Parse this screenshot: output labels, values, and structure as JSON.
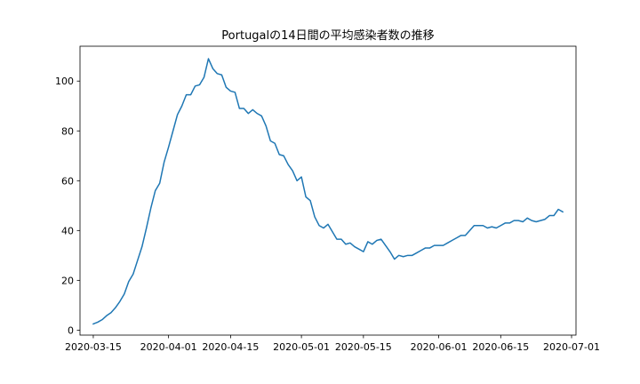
{
  "chart_data": {
    "type": "line",
    "title": "Portugalの14日間の平均感染者数の推移",
    "xlabel": "",
    "ylabel": "",
    "grid": false,
    "x_start": "2020-03-15",
    "x_step_days": 1,
    "xlim": [
      "2020-03-12",
      "2020-07-02"
    ],
    "ylim": [
      -2,
      114
    ],
    "yticks": [
      0,
      20,
      40,
      60,
      80,
      100
    ],
    "ytick_labels": [
      "0",
      "20",
      "40",
      "60",
      "80",
      "100"
    ],
    "xticks": [
      "2020-03-15",
      "2020-04-01",
      "2020-04-15",
      "2020-05-01",
      "2020-05-15",
      "2020-06-01",
      "2020-06-15",
      "2020-07-01"
    ],
    "xtick_labels": [
      "2020-03-15",
      "2020-04-01",
      "2020-04-15",
      "2020-05-01",
      "2020-05-15",
      "2020-06-01",
      "2020-06-15",
      "2020-07-01"
    ],
    "series": [
      {
        "name": "",
        "color": "#1f77b4",
        "values": [
          2.5,
          3.2,
          4.2,
          5.8,
          7.0,
          9.0,
          11.5,
          14.5,
          19.5,
          22.5,
          28.0,
          33.5,
          41.0,
          49.0,
          56.0,
          59.0,
          67.5,
          73.5,
          80.0,
          86.5,
          90.0,
          94.5,
          94.5,
          98.0,
          98.5,
          101.5,
          109.0,
          105.0,
          103.0,
          102.5,
          97.5,
          96.0,
          95.5,
          89.0,
          89.0,
          87.0,
          88.5,
          87.0,
          86.0,
          82.0,
          76.0,
          75.0,
          70.5,
          70.0,
          66.5,
          64.0,
          60.0,
          61.5,
          53.5,
          52.0,
          45.5,
          42.0,
          41.0,
          42.5,
          39.5,
          36.5,
          36.5,
          34.5,
          35.0,
          33.5,
          32.5,
          31.5,
          35.5,
          34.5,
          36.0,
          36.5,
          34.0,
          31.5,
          28.5,
          30.0,
          29.5,
          30.0,
          30.0,
          31.0,
          32.0,
          33.0,
          33.0,
          34.0,
          34.0,
          34.0,
          35.0,
          36.0,
          37.0,
          38.0,
          38.0,
          40.0,
          42.0,
          42.0,
          42.0,
          41.0,
          41.5,
          41.0,
          42.0,
          43.0,
          43.0,
          44.0,
          44.0,
          43.5,
          45.0,
          44.0,
          43.5,
          44.0,
          44.5,
          46.0,
          46.0,
          48.5,
          47.5
        ]
      }
    ]
  }
}
